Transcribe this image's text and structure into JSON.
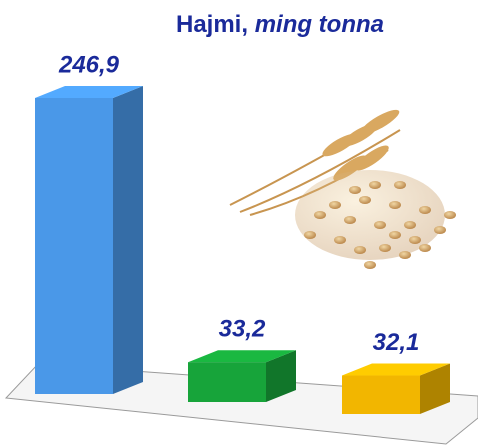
{
  "chart_data": {
    "type": "bar3d",
    "title": "Hajmi,",
    "unit": "ming tonna",
    "categories": [
      null,
      null,
      null
    ],
    "values": [
      246.9,
      33.2,
      32.1
    ],
    "value_labels": [
      "246,9",
      "33,2",
      "32,1"
    ],
    "colors": [
      "#4a98e8",
      "#17a43a",
      "#f2b600"
    ]
  }
}
